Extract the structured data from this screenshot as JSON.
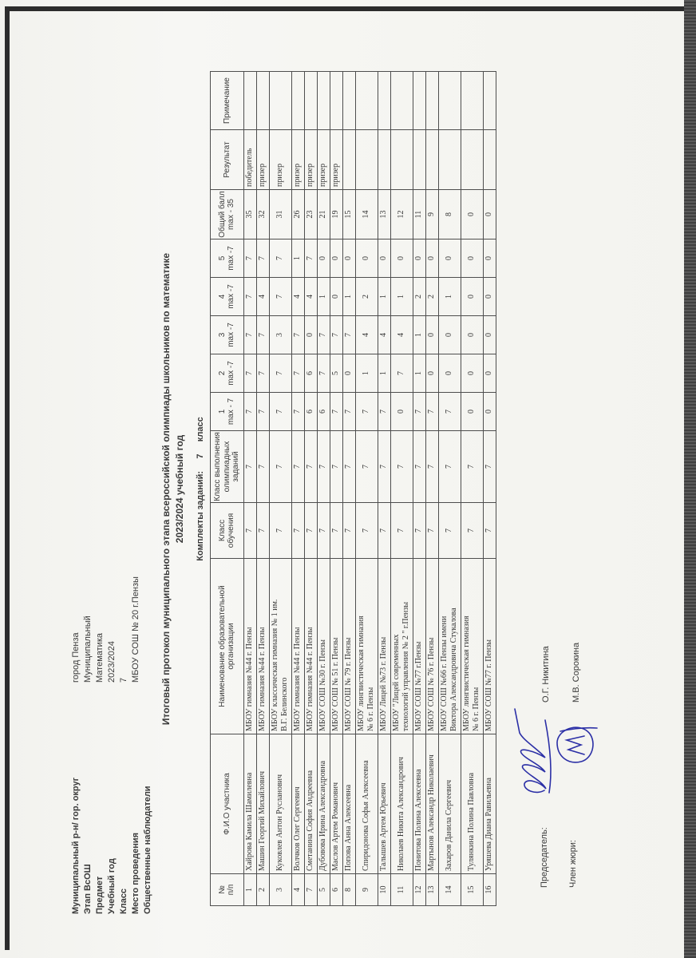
{
  "info": {
    "rows": [
      {
        "label": "Муниципальный р-н/ гор. округ",
        "value": "город Пенза"
      },
      {
        "label": "Этап ВсОШ",
        "value": "Муниципальный"
      },
      {
        "label": "Предмет",
        "value": "Математика"
      },
      {
        "label": "Учебный год",
        "value": "2023/2024"
      },
      {
        "label": "Класс",
        "value": "7"
      },
      {
        "label": "Место проведения",
        "value": "МБОУ СОШ № 20 г.Пензы"
      },
      {
        "label": "Общественные наблюдатели",
        "value": ""
      }
    ]
  },
  "title": {
    "line1": "Итоговый протокол муниципального этапа всероссийской олимпиады школьников по математике",
    "line2": "2023/2024 учебный год",
    "kits": "Комплекты заданий:     7     класс"
  },
  "table": {
    "headers": [
      "№\nп/п",
      "Ф.И.О участника",
      "Наименование образовательной\nорганизации",
      "Класс\nобучения",
      "Класс выполнения\nолимпиадных\nзаданий",
      "1\nmax - 7",
      "2\nmax -7",
      "3\nmax -7",
      "4\nmax -7",
      "5\nmax -7",
      "Общий балл\nmax - 35",
      "Результат",
      "Примечание"
    ],
    "rows": [
      [
        "1",
        "Хайрова Камила Шамилевна",
        "МБОУ гимназия №44 г. Пензы",
        "7",
        "7",
        "7",
        "7",
        "7",
        "7",
        "7",
        "35",
        "победитель",
        ""
      ],
      [
        "2",
        "Машин Георгий Михайлович",
        "МБОУ гимназия №44 г. Пензы",
        "7",
        "7",
        "7",
        "7",
        "7",
        "4",
        "7",
        "32",
        "призер",
        ""
      ],
      [
        "3",
        "Куковлев Антон Русланович",
        "МБОУ классическая гимназия № 1 им.\nВ.Г. Белинского",
        "7",
        "7",
        "7",
        "7",
        "3",
        "7",
        "7",
        "31",
        "призер",
        ""
      ],
      [
        "4",
        "Волчков Олег Сергеевич",
        "МБОУ гимназия №44 г. Пензы",
        "7",
        "7",
        "7",
        "7",
        "7",
        "4",
        "1",
        "26",
        "призер",
        ""
      ],
      [
        "7",
        "Сметанина София Андреевна",
        "МБОУ гимназия №44 г. Пензы",
        "7",
        "7",
        "6",
        "6",
        "0",
        "4",
        "7",
        "23",
        "призер",
        ""
      ],
      [
        "5",
        "Дубовова Ирина Александровна",
        "МБОУ СОШ №30 г. Пензы",
        "7",
        "7",
        "6",
        "7",
        "7",
        "1",
        "0",
        "21",
        "призер",
        ""
      ],
      [
        "6",
        "Маслов Артем Романович",
        "МБОУ СОШ № 51 г. Пензы",
        "7",
        "7",
        "7",
        "5",
        "7",
        "0",
        "0",
        "19",
        "призер",
        ""
      ],
      [
        "8",
        "Попова Анна Алексеевна",
        "МБОУ СОШ № 79 г. Пензы",
        "7",
        "7",
        "7",
        "0",
        "7",
        "1",
        "0",
        "15",
        "",
        ""
      ],
      [
        "9",
        "Спиридонова Софья Алексеевна",
        "МБОУ  лингвистическая гимназия\n№ 6 г. Пензы",
        "7",
        "7",
        "7",
        "1",
        "4",
        "2",
        "0",
        "14",
        "",
        ""
      ],
      [
        "10",
        "Талышев Артем Юрьевич",
        "МБОУ Лицей №73 г. Пензы",
        "7",
        "7",
        "7",
        "1",
        "4",
        "1",
        "0",
        "13",
        "",
        ""
      ],
      [
        "11",
        "Николаев Никита Александрович",
        "МБОУ \"Лицей современных\nтехнологий управления № 2 \" г.Пензы",
        "7",
        "7",
        "0",
        "7",
        "4",
        "1",
        "0",
        "12",
        "",
        ""
      ],
      [
        "12",
        "Понитова Полина Алексеевна",
        "МБОУ СОШ №77 г.Пензы",
        "7",
        "7",
        "7",
        "1",
        "1",
        "2",
        "0",
        "11",
        "",
        ""
      ],
      [
        "13",
        "Мартынов Александр Николаевич",
        "МБОУ СОШ № 76 г. Пензы",
        "7",
        "7",
        "7",
        "0",
        "0",
        "2",
        "0",
        "9",
        "",
        ""
      ],
      [
        "14",
        "Захаров Данила Сергеевич",
        "МБОУ СОШ №66 г. Пензы имени\nВиктора Александровича Стукалова",
        "7",
        "7",
        "7",
        "0",
        "0",
        "1",
        "0",
        "8",
        "",
        ""
      ],
      [
        "15",
        "Тулянкина Полина Павловна",
        "МБОУ  лингвистическая гимназия\n№ 6 г. Пензы",
        "7",
        "7",
        "0",
        "0",
        "0",
        "0",
        "0",
        "0",
        "",
        ""
      ],
      [
        "16",
        "Уряшева Диана Равильевна",
        "МБОУ СОШ №77 г. Пензы",
        "7",
        "7",
        "0",
        "0",
        "0",
        "0",
        "0",
        "0",
        "",
        ""
      ]
    ]
  },
  "signatures": {
    "chair_label": "Председатель:",
    "chair_name": "О.Г. Никитина",
    "jury_label": "Член жюри:",
    "jury_name": "М.В. Сорокина"
  },
  "colors": {
    "ink_blue": "#2b2fa6",
    "frame_dark": "#2c2c2c"
  }
}
